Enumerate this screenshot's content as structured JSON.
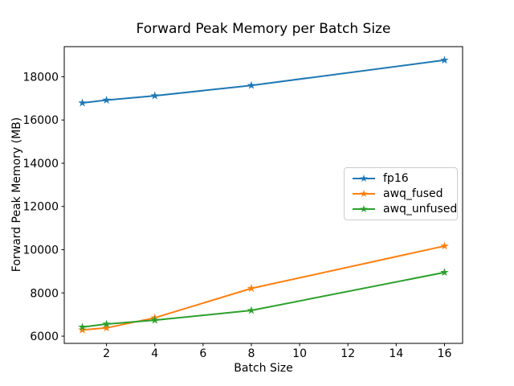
{
  "title": "Forward Peak Memory per Batch Size",
  "chart_data": {
    "type": "line",
    "title": "Forward Peak Memory per Batch Size",
    "xlabel": "Batch Size",
    "ylabel": "Forward Peak Memory (MB)",
    "x": [
      1,
      2,
      4,
      8,
      16
    ],
    "series": [
      {
        "name": "fp16",
        "color": "#1f77b4",
        "values": [
          16790,
          16920,
          17120,
          17600,
          18770
        ]
      },
      {
        "name": "awq_fused",
        "color": "#ff7f0e",
        "values": [
          6290,
          6380,
          6850,
          8210,
          10170
        ]
      },
      {
        "name": "awq_unfused",
        "color": "#2ca02c",
        "values": [
          6420,
          6560,
          6740,
          7190,
          8950
        ]
      }
    ],
    "x_ticks": [
      2,
      4,
      6,
      8,
      10,
      12,
      14,
      16
    ],
    "y_ticks": [
      6000,
      8000,
      10000,
      12000,
      14000,
      16000,
      18000
    ],
    "xlim": [
      0.25,
      16.75
    ],
    "ylim": [
      5666,
      19394
    ],
    "marker": "star",
    "line_width": 2,
    "grid": false,
    "legend_position": "center right",
    "axis_color": "#000000",
    "background_color": "#ffffff"
  }
}
